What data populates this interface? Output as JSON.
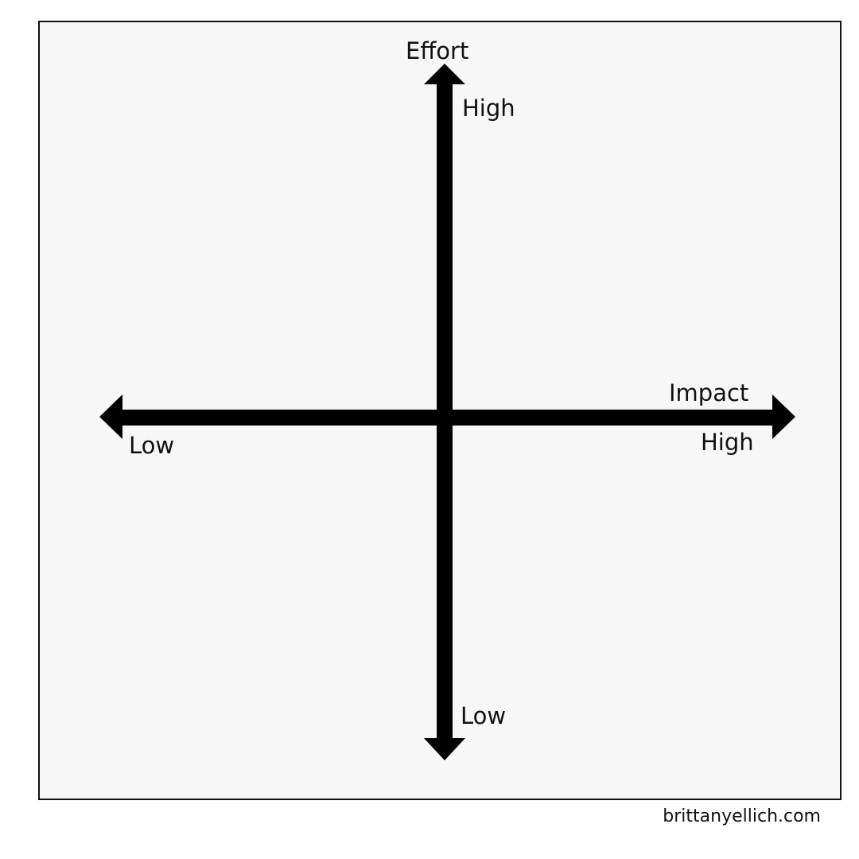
{
  "diagram": {
    "vertical_axis": {
      "title": "Effort",
      "top_label": "High",
      "bottom_label": "Low"
    },
    "horizontal_axis": {
      "title": "Impact",
      "left_label": "Low",
      "right_label": "High"
    },
    "colors": {
      "axis": "#000000",
      "panel_background": "#f7f7f7",
      "panel_border": "#111111"
    }
  },
  "footer": {
    "credit": "brittanyellich.com"
  }
}
